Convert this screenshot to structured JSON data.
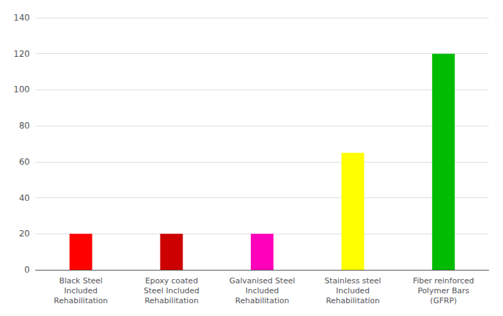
{
  "chart_data": {
    "type": "bar",
    "categories": [
      "Black Steel\nIncluded\nRehabilitation",
      "Epoxy coated\nSteel Included\nRehabilitation",
      "Galvanised Steel\nIncluded\nRehabilitation",
      "Stainless steel\nIncluded\nRehabilitation",
      "Fiber reinforced\nPolymer Bars\n(GFRP)"
    ],
    "values": [
      20,
      20,
      20,
      65,
      120
    ],
    "colors": [
      "#ff0000",
      "#cc0000",
      "#ff00bb",
      "#ffff00",
      "#00bb00"
    ],
    "ylim": [
      0,
      140
    ],
    "yticks": [
      0,
      20,
      40,
      60,
      80,
      100,
      120,
      140
    ],
    "grid": true
  }
}
